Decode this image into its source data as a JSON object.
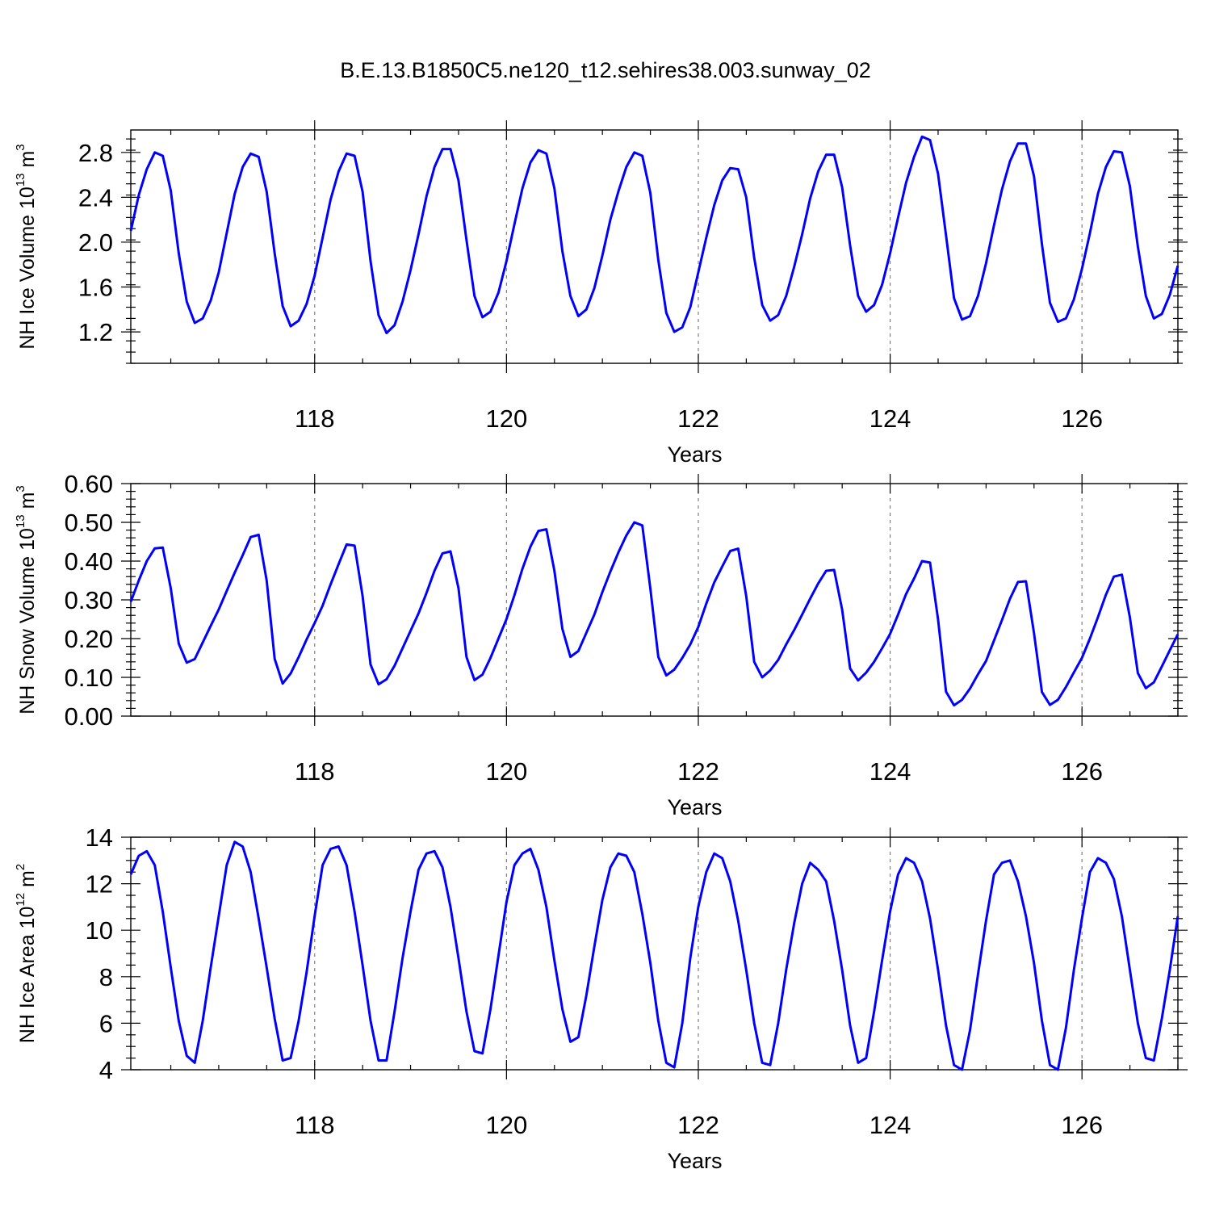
{
  "title": "B.E.13.B1850C5.ne120_t12.sehires38.003.sunway_02",
  "chart_data": [
    {
      "type": "line",
      "xlabel": "Years",
      "ylabel": {
        "main": "NH Ice Volume 10",
        "sup1": "13",
        "mid": " m",
        "sup2": "3"
      },
      "xlim": [
        116.083,
        127.0
      ],
      "ylim": [
        0.92,
        3.0
      ],
      "xticks": [
        118,
        120,
        122,
        124,
        126
      ],
      "yticks": [
        1.2,
        1.6,
        2.0,
        2.4,
        2.8
      ],
      "ytick_labels": [
        "1.2",
        "1.6",
        "2.0",
        "2.4",
        "2.8"
      ],
      "yminor_step": 0.1,
      "grid_x_dashed": true,
      "color": "#0000ff",
      "x_start": 116.083,
      "x_step": 0.08333,
      "series": [
        {
          "values": [
            2.1,
            2.42,
            2.65,
            2.8,
            2.77,
            2.46,
            1.9,
            1.47,
            1.28,
            1.32,
            1.48,
            1.73,
            2.08,
            2.43,
            2.67,
            2.79,
            2.76,
            2.45,
            1.9,
            1.43,
            1.25,
            1.3,
            1.45,
            1.7,
            2.04,
            2.38,
            2.63,
            2.79,
            2.77,
            2.45,
            1.83,
            1.35,
            1.19,
            1.26,
            1.47,
            1.75,
            2.07,
            2.41,
            2.67,
            2.83,
            2.83,
            2.55,
            2.02,
            1.52,
            1.33,
            1.38,
            1.55,
            1.83,
            2.16,
            2.48,
            2.71,
            2.82,
            2.79,
            2.48,
            1.92,
            1.52,
            1.34,
            1.4,
            1.59,
            1.88,
            2.2,
            2.45,
            2.67,
            2.8,
            2.77,
            2.44,
            1.84,
            1.37,
            1.2,
            1.24,
            1.42,
            1.73,
            2.04,
            2.33,
            2.55,
            2.66,
            2.65,
            2.4,
            1.86,
            1.44,
            1.3,
            1.35,
            1.52,
            1.78,
            2.07,
            2.39,
            2.63,
            2.78,
            2.78,
            2.49,
            1.97,
            1.52,
            1.38,
            1.44,
            1.62,
            1.9,
            2.22,
            2.53,
            2.76,
            2.94,
            2.91,
            2.61,
            2.06,
            1.5,
            1.31,
            1.34,
            1.52,
            1.81,
            2.15,
            2.47,
            2.72,
            2.88,
            2.88,
            2.59,
            1.98,
            1.46,
            1.29,
            1.32,
            1.49,
            1.76,
            2.08,
            2.43,
            2.67,
            2.81,
            2.8,
            2.5,
            1.96,
            1.52,
            1.32,
            1.36,
            1.53,
            1.79
          ]
        }
      ]
    },
    {
      "type": "line",
      "xlabel": "Years",
      "ylabel": {
        "main": "NH Snow Volume 10",
        "sup1": "13",
        "mid": " m",
        "sup2": "3"
      },
      "xlim": [
        116.083,
        127.0
      ],
      "ylim": [
        0.0,
        0.6
      ],
      "xticks": [
        118,
        120,
        122,
        124,
        126
      ],
      "yticks": [
        0.0,
        0.1,
        0.2,
        0.3,
        0.4,
        0.5,
        0.6
      ],
      "ytick_labels": [
        "0.00",
        "0.10",
        "0.20",
        "0.30",
        "0.40",
        "0.50",
        "0.60"
      ],
      "yminor_step": 0.02,
      "grid_x_dashed": true,
      "color": "#0000ff",
      "x_start": 116.083,
      "x_step": 0.08333,
      "series": [
        {
          "values": [
            0.295,
            0.35,
            0.4,
            0.433,
            0.435,
            0.33,
            0.187,
            0.138,
            0.147,
            0.19,
            0.233,
            0.275,
            0.323,
            0.37,
            0.415,
            0.462,
            0.468,
            0.35,
            0.148,
            0.084,
            0.11,
            0.152,
            0.198,
            0.24,
            0.285,
            0.34,
            0.392,
            0.443,
            0.44,
            0.31,
            0.133,
            0.082,
            0.095,
            0.13,
            0.175,
            0.22,
            0.265,
            0.318,
            0.375,
            0.42,
            0.425,
            0.33,
            0.153,
            0.093,
            0.107,
            0.15,
            0.2,
            0.25,
            0.312,
            0.38,
            0.437,
            0.478,
            0.482,
            0.375,
            0.225,
            0.153,
            0.168,
            0.215,
            0.262,
            0.32,
            0.373,
            0.422,
            0.466,
            0.5,
            0.492,
            0.33,
            0.153,
            0.105,
            0.12,
            0.15,
            0.185,
            0.23,
            0.29,
            0.345,
            0.386,
            0.426,
            0.432,
            0.31,
            0.14,
            0.1,
            0.118,
            0.145,
            0.185,
            0.222,
            0.262,
            0.303,
            0.342,
            0.375,
            0.377,
            0.275,
            0.123,
            0.092,
            0.112,
            0.14,
            0.175,
            0.212,
            0.262,
            0.315,
            0.355,
            0.4,
            0.396,
            0.25,
            0.063,
            0.028,
            0.042,
            0.071,
            0.108,
            0.142,
            0.195,
            0.248,
            0.303,
            0.346,
            0.348,
            0.215,
            0.062,
            0.029,
            0.042,
            0.075,
            0.113,
            0.15,
            0.2,
            0.255,
            0.313,
            0.36,
            0.365,
            0.255,
            0.111,
            0.072,
            0.087,
            0.128,
            0.17,
            0.211
          ]
        }
      ]
    },
    {
      "type": "line",
      "xlabel": "Years",
      "ylabel": {
        "main": "NH Ice Area 10",
        "sup1": "12",
        "mid": " m",
        "sup2": "2"
      },
      "xlim": [
        116.083,
        127.0
      ],
      "ylim": [
        4.0,
        14.0
      ],
      "xticks": [
        118,
        120,
        122,
        124,
        126
      ],
      "yticks": [
        4,
        6,
        8,
        10,
        12,
        14
      ],
      "ytick_labels": [
        "4",
        "6",
        "8",
        "10",
        "12",
        "14"
      ],
      "yminor_step": 0.5,
      "grid_x_dashed": true,
      "color": "#0000ff",
      "x_start": 116.083,
      "x_step": 0.08333,
      "series": [
        {
          "values": [
            12.4,
            13.2,
            13.4,
            12.8,
            10.8,
            8.4,
            6.1,
            4.6,
            4.3,
            6.1,
            8.4,
            10.6,
            12.8,
            13.8,
            13.6,
            12.5,
            10.5,
            8.4,
            6.2,
            4.4,
            4.5,
            6.1,
            8.2,
            10.6,
            12.8,
            13.5,
            13.6,
            12.8,
            10.8,
            8.5,
            6.1,
            4.4,
            4.4,
            6.5,
            8.8,
            10.8,
            12.6,
            13.3,
            13.4,
            12.7,
            11.0,
            8.8,
            6.5,
            4.8,
            4.7,
            6.6,
            8.9,
            11.2,
            12.8,
            13.3,
            13.5,
            12.6,
            11.0,
            8.7,
            6.6,
            5.2,
            5.4,
            7.2,
            9.3,
            11.3,
            12.7,
            13.3,
            13.2,
            12.5,
            10.7,
            8.6,
            6.1,
            4.3,
            4.1,
            6.0,
            8.8,
            11.0,
            12.5,
            13.3,
            13.1,
            12.1,
            10.4,
            8.3,
            6.0,
            4.3,
            4.2,
            6.0,
            8.3,
            10.3,
            12.0,
            12.9,
            12.6,
            12.1,
            10.4,
            8.3,
            5.9,
            4.3,
            4.5,
            6.5,
            8.7,
            10.8,
            12.4,
            13.1,
            12.9,
            12.1,
            10.5,
            8.3,
            5.9,
            4.2,
            4.0,
            5.7,
            8.1,
            10.4,
            12.4,
            12.9,
            13.0,
            12.1,
            10.6,
            8.6,
            6.1,
            4.2,
            4.0,
            5.8,
            8.3,
            10.5,
            12.5,
            13.1,
            12.9,
            12.2,
            10.6,
            8.3,
            6.0,
            4.5,
            4.4,
            6.2,
            8.3,
            10.6
          ]
        }
      ]
    }
  ]
}
